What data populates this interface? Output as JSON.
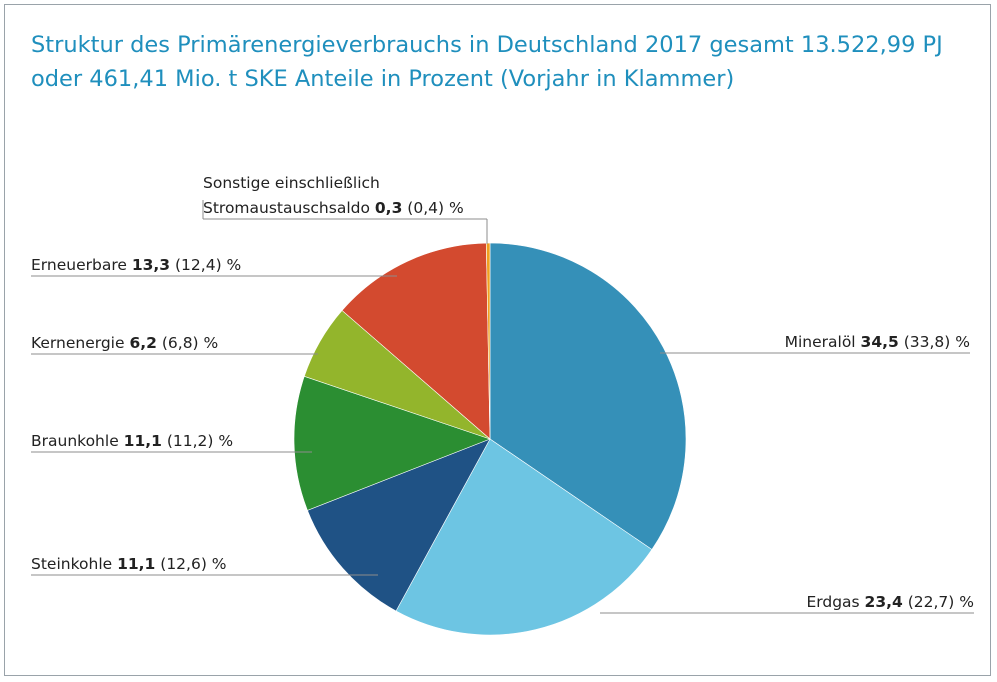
{
  "title_line1": "Struktur des Primärenergieverbrauchs in Deutschland 2017 gesamt 13.522,99 PJ",
  "title_line2": "oder 461,41 Mio. t SKE Anteile in Prozent (Vorjahr in Klammer)",
  "chart_data": {
    "type": "pie",
    "title": "Struktur des Primärenergieverbrauchs in Deutschland 2017 gesamt 13.522,99 PJ oder 461,41 Mio. t SKE Anteile in Prozent (Vorjahr in Klammer)",
    "unit": "%",
    "slices": [
      {
        "label": "Mineralöl",
        "value": 34.5,
        "value_text": "34,5",
        "prev_text": "(33,8)",
        "color": "#3590b8"
      },
      {
        "label": "Erdgas",
        "value": 23.4,
        "value_text": "23,4",
        "prev_text": "(22,7)",
        "color": "#6dc5e3"
      },
      {
        "label": "Steinkohle",
        "value": 11.1,
        "value_text": "11,1",
        "prev_text": "(12,6)",
        "color": "#1f5285"
      },
      {
        "label": "Braunkohle",
        "value": 11.1,
        "value_text": "11,1",
        "prev_text": "(11,2)",
        "color": "#2b8e32"
      },
      {
        "label": "Kernenergie",
        "value": 6.2,
        "value_text": "6,2",
        "prev_text": "(6,8)",
        "color": "#93b52c"
      },
      {
        "label": "Erneuerbare",
        "value": 13.3,
        "value_text": "13,3",
        "prev_text": "(12,4)",
        "color": "#d34a2f"
      },
      {
        "label": "Sonstige einschließlich Stromaustauschsaldo",
        "label_line1": "Sonstige einschließlich",
        "label_line2": "Stromaustauschsaldo",
        "value": 0.3,
        "value_text": "0,3",
        "prev_text": "(0,4)",
        "color": "#f0a020"
      }
    ]
  }
}
